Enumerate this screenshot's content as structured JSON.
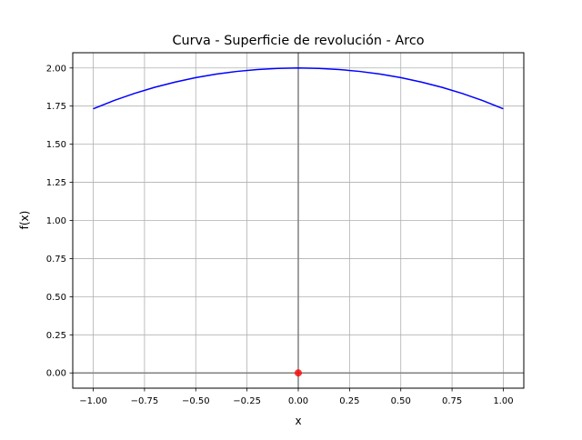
{
  "chart_data": {
    "type": "line",
    "title": "Curva - Superficie de revolución - Arco",
    "xlabel": "x",
    "ylabel": "f(x)",
    "xlim": [
      -1.1,
      1.1
    ],
    "ylim": [
      -0.1,
      2.1
    ],
    "grid": true,
    "xticks": [
      -1.0,
      -0.75,
      -0.5,
      -0.25,
      0.0,
      0.25,
      0.5,
      0.75,
      1.0
    ],
    "xtick_labels": [
      "−1.00",
      "−0.75",
      "−0.50",
      "−0.25",
      "0.00",
      "0.25",
      "0.50",
      "0.75",
      "1.00"
    ],
    "yticks": [
      0.0,
      0.25,
      0.5,
      0.75,
      1.0,
      1.25,
      1.5,
      1.75,
      2.0
    ],
    "ytick_labels": [
      "0.00",
      "0.25",
      "0.50",
      "0.75",
      "1.00",
      "1.25",
      "1.50",
      "1.75",
      "2.00"
    ],
    "series": [
      {
        "color": "#0000ff",
        "x": [
          -1.0,
          -0.9,
          -0.8,
          -0.7,
          -0.6,
          -0.5,
          -0.4,
          -0.3,
          -0.2,
          -0.1,
          0.0,
          0.1,
          0.2,
          0.3,
          0.4,
          0.5,
          0.6,
          0.7,
          0.8,
          0.9,
          1.0
        ],
        "y": [
          1.7321,
          1.7861,
          1.833,
          1.8735,
          1.9079,
          1.9365,
          1.9596,
          1.9774,
          1.99,
          1.9975,
          2.0,
          1.9975,
          1.99,
          1.9774,
          1.9596,
          1.9365,
          1.9079,
          1.8735,
          1.833,
          1.7861,
          1.7321
        ]
      }
    ],
    "points": [
      {
        "x": 0.0,
        "y": 0.0,
        "color": "#ff0000"
      }
    ],
    "axis_lines_color": "#808080"
  }
}
